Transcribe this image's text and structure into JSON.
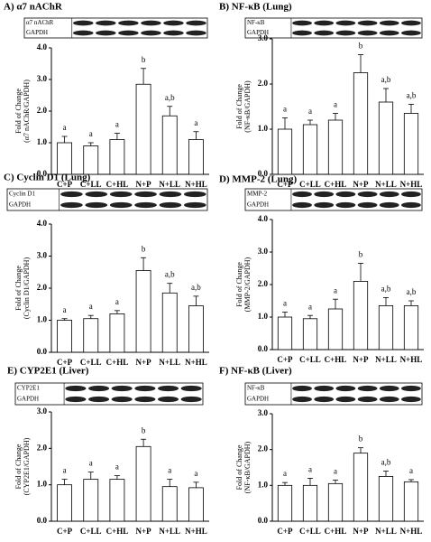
{
  "chart_data": [
    {
      "type": "bar",
      "title": "A) α7 nAChR",
      "blot_labels": [
        "α7 nAChR",
        "GAPDH"
      ],
      "y_label": [
        "Fold of Change",
        "(α7 nAChR/GAPDH)"
      ],
      "categories": [
        "C+P",
        "C+LL",
        "C+HL",
        "N+P",
        "N+LL",
        "N+HL"
      ],
      "values": [
        1.0,
        0.9,
        1.1,
        2.85,
        1.85,
        1.1
      ],
      "errors": [
        0.2,
        0.1,
        0.2,
        0.5,
        0.3,
        0.25
      ],
      "letters": [
        "a",
        "a",
        "a",
        "b",
        "a,b",
        "a"
      ],
      "color": "#ffffff",
      "ylim": [
        0,
        4
      ],
      "yticks": [
        {
          "value": 0,
          "label": "0.0"
        },
        {
          "value": 1,
          "label": "1.0"
        },
        {
          "value": 2,
          "label": "2.0"
        },
        {
          "value": 3,
          "label": "3.0"
        },
        {
          "value": 4,
          "label": "4.0"
        }
      ]
    },
    {
      "type": "bar",
      "title": "B) NF-κB (Lung)",
      "blot_labels": [
        "NF-κB",
        "GAPDH"
      ],
      "y_label": [
        "Fold of Change",
        "(NF-κB/GAPDH)"
      ],
      "categories": [
        "C+P",
        "C+LL",
        "C+HL",
        "N+P",
        "N+LL",
        "N+HL"
      ],
      "values": [
        1.0,
        1.1,
        1.2,
        2.25,
        1.6,
        1.35
      ],
      "errors": [
        0.25,
        0.1,
        0.15,
        0.4,
        0.3,
        0.2
      ],
      "letters": [
        "a",
        "a",
        "a",
        "b",
        "a,b",
        "a,b"
      ],
      "color": "#ffffff",
      "ylim": [
        0,
        3
      ],
      "yticks": [
        {
          "value": 0,
          "label": "0.0"
        },
        {
          "value": 1,
          "label": "1.0"
        },
        {
          "value": 2,
          "label": "2.0"
        },
        {
          "value": 3,
          "label": "3.0"
        }
      ]
    },
    {
      "type": "bar",
      "title": "C) Cyclin D1 (Lung)",
      "blot_labels": [
        "Cyclin D1",
        "GAPDH"
      ],
      "y_label": [
        "Fold of Change",
        "(Cyclin D1/GAPDH)"
      ],
      "categories": [
        "C+P",
        "C+LL",
        "C+HL",
        "N+P",
        "N+LL",
        "N+HL"
      ],
      "values": [
        1.0,
        1.05,
        1.2,
        2.55,
        1.85,
        1.45
      ],
      "errors": [
        0.05,
        0.1,
        0.1,
        0.4,
        0.3,
        0.3
      ],
      "letters": [
        "a",
        "a",
        "a",
        "b",
        "a,b",
        "a,b"
      ],
      "color": "#ffffff",
      "ylim": [
        0,
        4
      ],
      "yticks": [
        {
          "value": 0,
          "label": "0.0"
        },
        {
          "value": 1,
          "label": "1.0"
        },
        {
          "value": 2,
          "label": "2.0"
        },
        {
          "value": 3,
          "label": "3.0"
        },
        {
          "value": 4,
          "label": "4.0"
        }
      ]
    },
    {
      "type": "bar",
      "title": "D) MMP-2 (Lung)",
      "blot_labels": [
        "MMP-2",
        "GAPDH"
      ],
      "y_label": [
        "Fold of Change",
        "(MMP-2/GAPDH)"
      ],
      "categories": [
        "C+P",
        "C+LL",
        "C+HL",
        "N+P",
        "N+LL",
        "N+HL"
      ],
      "values": [
        1.0,
        0.95,
        1.25,
        2.1,
        1.35,
        1.35
      ],
      "errors": [
        0.15,
        0.1,
        0.3,
        0.55,
        0.25,
        0.15
      ],
      "letters": [
        "a",
        "a",
        "a",
        "b",
        "a,b",
        "a,b"
      ],
      "color": "#ffffff",
      "ylim": [
        0,
        4
      ],
      "yticks": [
        {
          "value": 0,
          "label": "0.0"
        },
        {
          "value": 1,
          "label": "1.0"
        },
        {
          "value": 2,
          "label": "2.0"
        },
        {
          "value": 3,
          "label": "3.0"
        },
        {
          "value": 4,
          "label": "4.0"
        }
      ]
    },
    {
      "type": "bar",
      "title": "E) CYP2E1 (Liver)",
      "blot_labels": [
        "CYP2E1",
        "GAPDH"
      ],
      "y_label": [
        "Fold of Change",
        "(CYP2E1/GAPDH)"
      ],
      "categories": [
        "C+P",
        "C+LL",
        "C+HL",
        "N+P",
        "N+LL",
        "N+HL"
      ],
      "values": [
        1.0,
        1.15,
        1.15,
        2.05,
        0.95,
        0.92
      ],
      "errors": [
        0.15,
        0.2,
        0.1,
        0.2,
        0.2,
        0.15
      ],
      "letters": [
        "a",
        "a",
        "a",
        "b",
        "a",
        "a"
      ],
      "color": "#ffffff",
      "ylim": [
        0,
        3
      ],
      "yticks": [
        {
          "value": 0,
          "label": "0.0"
        },
        {
          "value": 1,
          "label": "1.0"
        },
        {
          "value": 2,
          "label": "2.0"
        },
        {
          "value": 3,
          "label": "3.0"
        }
      ]
    },
    {
      "type": "bar",
      "title": "F) NF-κB (Liver)",
      "blot_labels": [
        "NF-κB",
        "GAPDH"
      ],
      "y_label": [
        "Fold of Change",
        "(NF-κB/GAPDH)"
      ],
      "categories": [
        "C+P",
        "C+LL",
        "C+HL",
        "N+P",
        "N+LL",
        "N+HL"
      ],
      "values": [
        1.0,
        1.0,
        1.05,
        1.9,
        1.25,
        1.1
      ],
      "errors": [
        0.08,
        0.2,
        0.1,
        0.15,
        0.15,
        0.06
      ],
      "letters": [
        "a",
        "a",
        "a",
        "b",
        "a,b",
        "a"
      ],
      "color": "#ffffff",
      "ylim": [
        0,
        3
      ],
      "yticks": [
        {
          "value": 0,
          "label": "0.0"
        },
        {
          "value": 1,
          "label": "1.0"
        },
        {
          "value": 2,
          "label": "2.0"
        },
        {
          "value": 3,
          "label": "3.0"
        }
      ]
    }
  ]
}
